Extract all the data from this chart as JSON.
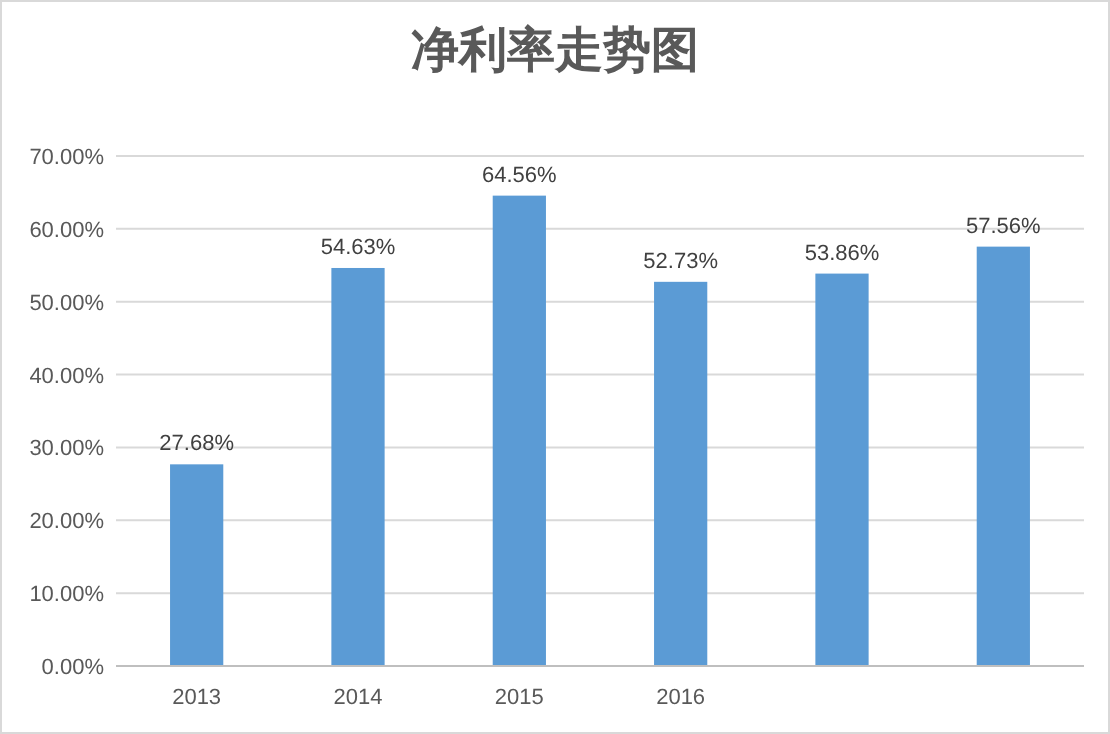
{
  "chart_data": {
    "type": "bar",
    "title": "净利率走势图",
    "categories": [
      "2013",
      "2014",
      "2015",
      "2016",
      null,
      null
    ],
    "values": [
      27.68,
      54.63,
      64.56,
      52.73,
      53.86,
      57.56
    ],
    "value_labels": [
      "27.68%",
      "54.63%",
      "64.56%",
      "52.73%",
      "53.86%",
      "57.56%"
    ],
    "color": "#5b9bd5",
    "ylim": [
      0,
      70
    ],
    "yticks": [
      {
        "value": 0,
        "label": "0.00%"
      },
      {
        "value": 10,
        "label": "10.00%"
      },
      {
        "value": 20,
        "label": "20.00%"
      },
      {
        "value": 30,
        "label": "30.00%"
      },
      {
        "value": 40,
        "label": "40.00%"
      },
      {
        "value": 50,
        "label": "50.00%"
      },
      {
        "value": 60,
        "label": "60.00%"
      },
      {
        "value": 70,
        "label": "70.00%"
      }
    ],
    "grid": "y"
  }
}
